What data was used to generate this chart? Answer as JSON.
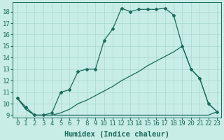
{
  "xlabel": "Humidex (Indice chaleur)",
  "bg_color": "#c8ece6",
  "line_color": "#1a6b5a",
  "grid_color": "#a8d8d0",
  "xlim": [
    -0.5,
    23.5
  ],
  "ylim": [
    8.8,
    18.8
  ],
  "yticks": [
    9,
    10,
    11,
    12,
    13,
    14,
    15,
    16,
    17,
    18
  ],
  "xticks": [
    0,
    1,
    2,
    3,
    4,
    5,
    6,
    7,
    8,
    9,
    10,
    11,
    12,
    13,
    14,
    15,
    16,
    17,
    18,
    19,
    20,
    21,
    22,
    23
  ],
  "curve1_x": [
    0,
    1,
    2,
    3,
    4,
    5,
    6,
    7,
    8,
    9,
    10,
    11,
    12,
    13,
    14,
    15,
    16,
    17,
    18,
    19,
    20,
    21,
    22,
    23
  ],
  "curve1_y": [
    10.5,
    9.7,
    9.0,
    9.0,
    9.2,
    11.0,
    11.2,
    12.8,
    13.0,
    13.0,
    15.5,
    16.5,
    18.3,
    18.0,
    18.2,
    18.2,
    18.2,
    18.3,
    17.7,
    15.0,
    13.0,
    12.2,
    10.0,
    9.3
  ],
  "curve2_x": [
    0,
    1,
    2,
    3,
    4,
    5,
    6,
    7,
    8,
    9,
    10,
    11,
    12,
    13,
    14,
    15,
    16,
    17,
    18,
    19,
    20,
    21,
    22,
    23
  ],
  "curve2_y": [
    10.5,
    9.5,
    9.0,
    9.0,
    9.0,
    9.0,
    9.0,
    9.0,
    9.0,
    9.0,
    9.0,
    9.0,
    9.0,
    9.0,
    9.0,
    9.0,
    9.0,
    9.0,
    9.0,
    9.0,
    9.0,
    9.0,
    9.0,
    9.3
  ],
  "curve3_x": [
    0,
    1,
    2,
    3,
    4,
    5,
    6,
    7,
    8,
    9,
    10,
    11,
    12,
    13,
    14,
    15,
    16,
    17,
    18,
    19,
    20,
    21,
    22,
    23
  ],
  "curve3_y": [
    10.5,
    9.5,
    9.0,
    9.0,
    9.0,
    9.2,
    9.5,
    10.0,
    10.3,
    10.7,
    11.1,
    11.5,
    12.0,
    12.4,
    12.8,
    13.3,
    13.7,
    14.1,
    14.5,
    15.0,
    13.0,
    12.2,
    10.0,
    9.3
  ],
  "font_family": "monospace",
  "tick_fontsize": 6.5,
  "label_fontsize": 7.5
}
